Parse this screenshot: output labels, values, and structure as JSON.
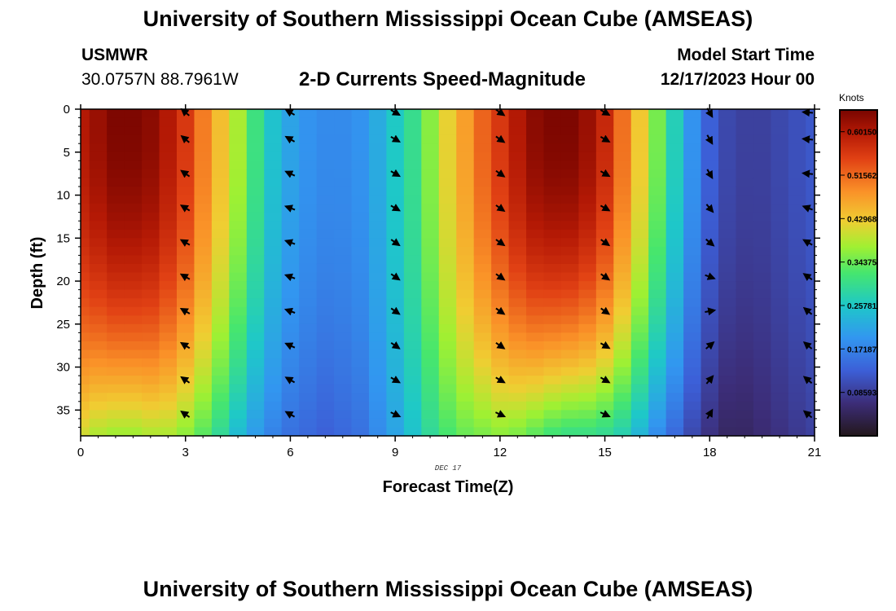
{
  "header": {
    "title": "University of Southern Mississippi Ocean Cube (AMSEAS)",
    "station": "USMWR",
    "coordinates": "30.0757N  88.7961W",
    "chart_title": "2-D Currents Speed-Magnitude",
    "start_label": "Model Start Time",
    "start_value": "12/17/2023 Hour 00"
  },
  "footer": {
    "title": "University of Southern Mississippi Ocean Cube (AMSEAS)"
  },
  "colorbar": {
    "units": "Knots",
    "tick_labels": [
      "0.60150",
      "0.51562",
      "0.42968",
      "0.34375",
      "0.25781",
      "0.17187",
      "0.08593"
    ],
    "tick_values": [
      0.6015,
      0.51562,
      0.42968,
      0.34375,
      0.25781,
      0.17187,
      0.08593
    ],
    "range": [
      0,
      0.6445
    ]
  },
  "chart_data": {
    "type": "heatmap",
    "title": "2-D Currents Speed-Magnitude",
    "xlabel": "Forecast Time(Z)",
    "ylabel": "Depth (ft)",
    "date_label": "DEC 17",
    "xlim": [
      0,
      21
    ],
    "ylim": [
      0,
      38
    ],
    "x_ticks": [
      "0",
      "3",
      "6",
      "9",
      "12",
      "15",
      "18",
      "21"
    ],
    "y_ticks": [
      "0",
      "5",
      "10",
      "15",
      "20",
      "25",
      "30",
      "35"
    ],
    "units": "Knots",
    "hours": [
      0,
      0.5,
      1,
      1.5,
      2,
      2.5,
      3,
      3.5,
      4,
      4.5,
      5,
      5.5,
      6,
      6.5,
      7,
      7.5,
      8,
      8.5,
      9,
      9.5,
      10,
      10.5,
      11,
      11.5,
      12,
      12.5,
      13,
      13.5,
      14,
      14.5,
      15,
      15.5,
      16,
      16.5,
      17,
      17.5,
      18,
      18.5,
      19,
      19.5,
      20,
      20.5,
      21
    ],
    "surface_speed": [
      0.6,
      0.62,
      0.64,
      0.64,
      0.63,
      0.6,
      0.56,
      0.5,
      0.44,
      0.38,
      0.31,
      0.25,
      0.21,
      0.19,
      0.18,
      0.18,
      0.19,
      0.22,
      0.26,
      0.3,
      0.36,
      0.42,
      0.47,
      0.52,
      0.56,
      0.6,
      0.63,
      0.64,
      0.64,
      0.62,
      0.58,
      0.51,
      0.43,
      0.35,
      0.27,
      0.19,
      0.13,
      0.1,
      0.09,
      0.09,
      0.1,
      0.11,
      0.12
    ],
    "bottom_speed": [
      0.4,
      0.38,
      0.37,
      0.37,
      0.38,
      0.38,
      0.36,
      0.33,
      0.29,
      0.24,
      0.2,
      0.17,
      0.15,
      0.14,
      0.13,
      0.14,
      0.15,
      0.18,
      0.21,
      0.25,
      0.29,
      0.32,
      0.34,
      0.35,
      0.36,
      0.35,
      0.33,
      0.31,
      0.3,
      0.3,
      0.29,
      0.27,
      0.23,
      0.18,
      0.14,
      0.1,
      0.07,
      0.05,
      0.05,
      0.06,
      0.07,
      0.08,
      0.09
    ],
    "vectors": {
      "hours": [
        3,
        6,
        9,
        12,
        15,
        18,
        21
      ],
      "depths": [
        3.5,
        7.5,
        11.5,
        15.5,
        19.5,
        23.5,
        27.5,
        31.5,
        35.5
      ],
      "direction_deg_from_east": [
        [
          140,
          145,
          148,
          150,
          150,
          150,
          148,
          145,
          145
        ],
        [
          150,
          155,
          160,
          160,
          160,
          160,
          155,
          150,
          150
        ],
        [
          -30,
          -30,
          -30,
          -35,
          -35,
          -35,
          -35,
          -30,
          -25
        ],
        [
          -35,
          -35,
          -35,
          -35,
          -35,
          -35,
          -35,
          -30,
          -25
        ],
        [
          -30,
          -30,
          -30,
          -35,
          -35,
          -35,
          -30,
          -30,
          -25
        ],
        [
          -60,
          -60,
          -50,
          -40,
          -20,
          10,
          40,
          50,
          60
        ],
        [
          175,
          175,
          160,
          150,
          145,
          140,
          140,
          140,
          140
        ]
      ]
    }
  }
}
